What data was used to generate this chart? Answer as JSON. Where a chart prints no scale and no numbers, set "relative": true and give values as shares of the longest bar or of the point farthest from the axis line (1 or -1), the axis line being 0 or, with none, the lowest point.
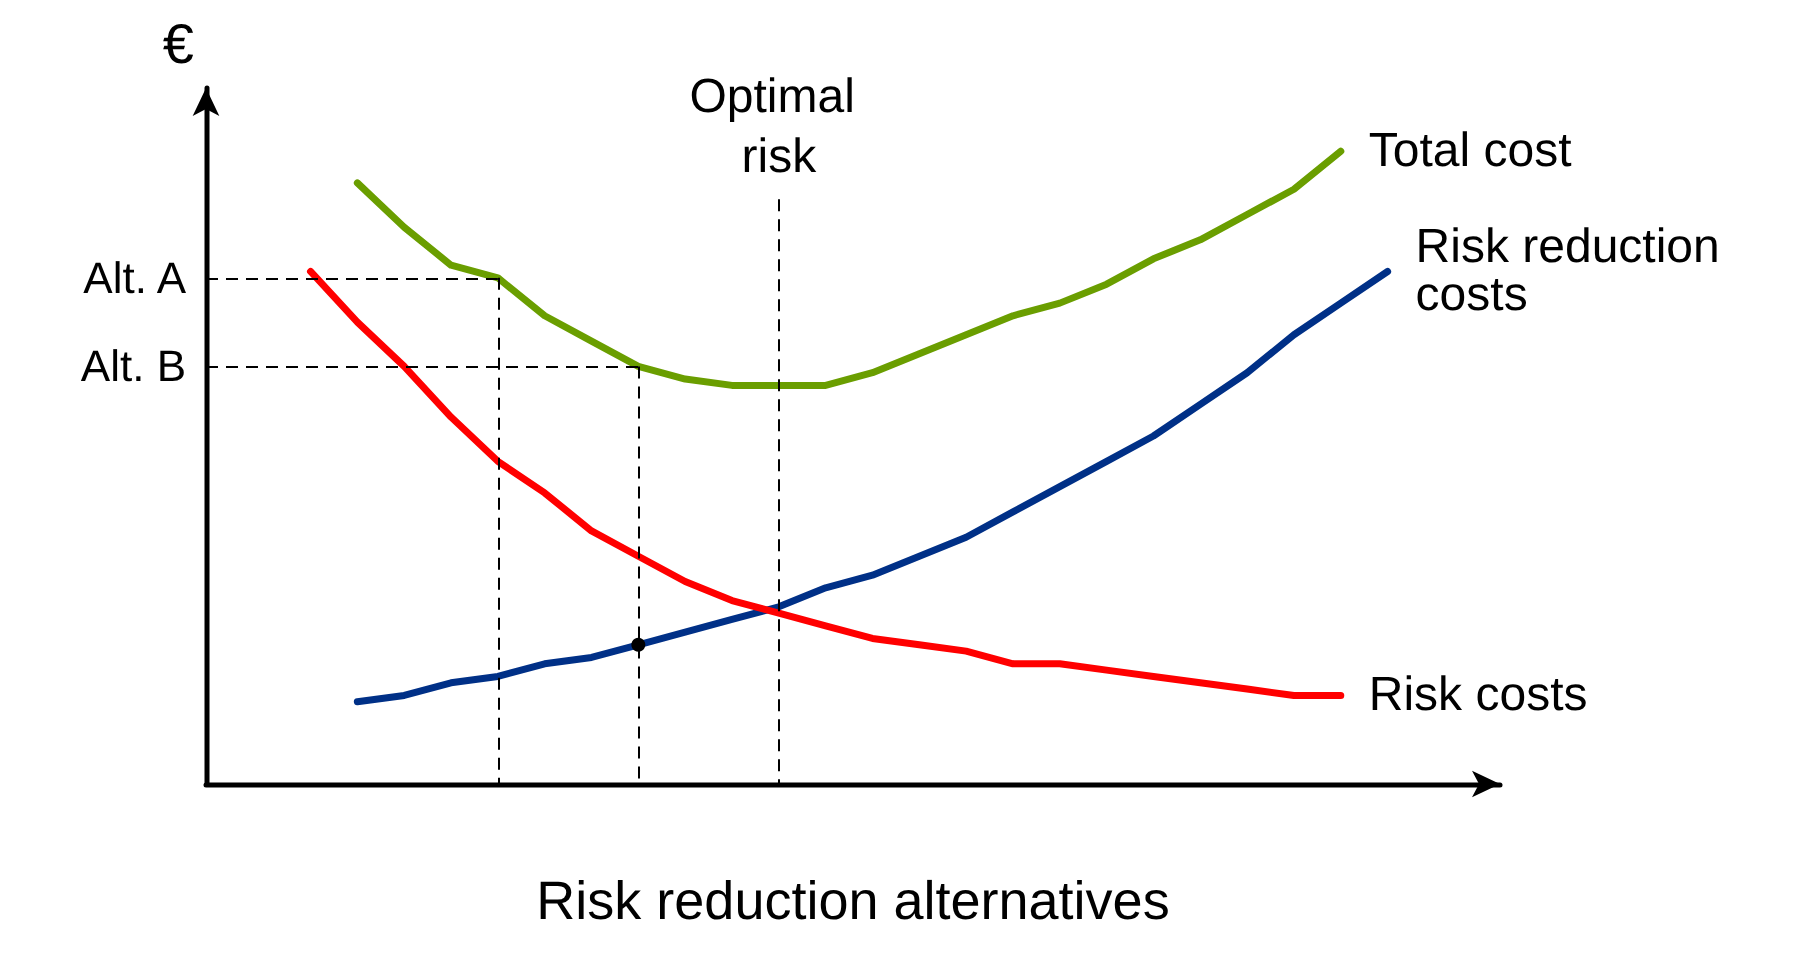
{
  "chart_data": {
    "type": "line",
    "relative": true,
    "xlabel": "Risk reduction alternatives",
    "ylabel": "€",
    "annotations": [
      "Optimal risk"
    ],
    "grid": false,
    "legend": false,
    "marker": "none",
    "line_style": "solid",
    "categories": [
      null,
      null,
      null,
      null,
      null,
      null,
      null,
      null,
      null,
      null,
      null,
      null,
      null,
      null,
      null,
      null,
      null,
      null,
      null,
      null,
      null,
      null,
      null,
      null
    ],
    "series": [
      {
        "name": "Total cost",
        "color": "#6a9e00",
        "values": [
          null,
          0.95,
          0.88,
          0.82,
          0.8,
          0.74,
          0.7,
          0.66,
          0.64,
          0.63,
          0.63,
          0.63,
          0.65,
          0.68,
          0.71,
          0.74,
          0.76,
          0.79,
          0.83,
          0.86,
          0.9,
          0.94,
          1.0,
          null
        ]
      },
      {
        "name": "Risk reduction costs",
        "color": "#003087",
        "values": [
          null,
          0.13,
          0.14,
          0.16,
          0.17,
          0.19,
          0.2,
          0.22,
          0.24,
          0.26,
          0.28,
          0.31,
          0.33,
          0.36,
          0.39,
          0.43,
          0.47,
          0.51,
          0.55,
          0.6,
          0.65,
          0.71,
          0.76,
          0.81
        ]
      },
      {
        "name": "Risk costs",
        "color": "#ff0000",
        "values": [
          0.81,
          0.73,
          0.66,
          0.58,
          0.51,
          0.46,
          0.4,
          0.36,
          0.32,
          0.29,
          0.27,
          0.25,
          0.23,
          0.22,
          0.21,
          0.19,
          0.19,
          0.18,
          0.17,
          0.16,
          0.15,
          0.14,
          0.14,
          null
        ]
      }
    ],
    "ref_lines": [
      {
        "axis": "y",
        "value": 0.8,
        "label": "Alt. A",
        "color": "#000000",
        "line_style": "dashed"
      },
      {
        "axis": "y",
        "value": 0.66,
        "label": "Alt. B",
        "color": "#000000",
        "line_style": "dashed"
      }
    ]
  }
}
